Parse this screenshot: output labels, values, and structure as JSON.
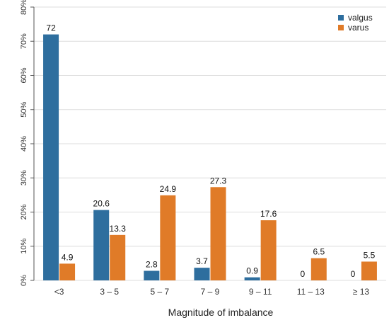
{
  "chart_data": {
    "type": "bar",
    "title": "",
    "xlabel": "Magnitude of imbalance",
    "ylabel": "",
    "categories": [
      "<3",
      "3 – 5",
      "5 – 7",
      "7 – 9",
      "9 – 11",
      "11 – 13",
      "≥ 13"
    ],
    "series": [
      {
        "name": "valgus",
        "color": "#2e6e9e",
        "values": [
          72,
          20.6,
          2.8,
          3.7,
          0.9,
          0,
          0
        ]
      },
      {
        "name": "varus",
        "color": "#e07b28",
        "values": [
          4.9,
          13.3,
          24.9,
          27.3,
          17.6,
          6.5,
          5.5
        ]
      }
    ],
    "ylim": [
      0,
      80
    ],
    "yticks": [
      0,
      10,
      20,
      30,
      40,
      50,
      60,
      70,
      80
    ],
    "ytick_labels": [
      "0%",
      "10%",
      "20%",
      "30%",
      "40%",
      "50%",
      "60%",
      "70%",
      "80%"
    ],
    "grid": true,
    "legend_position": "top-right",
    "data_labels": true
  }
}
